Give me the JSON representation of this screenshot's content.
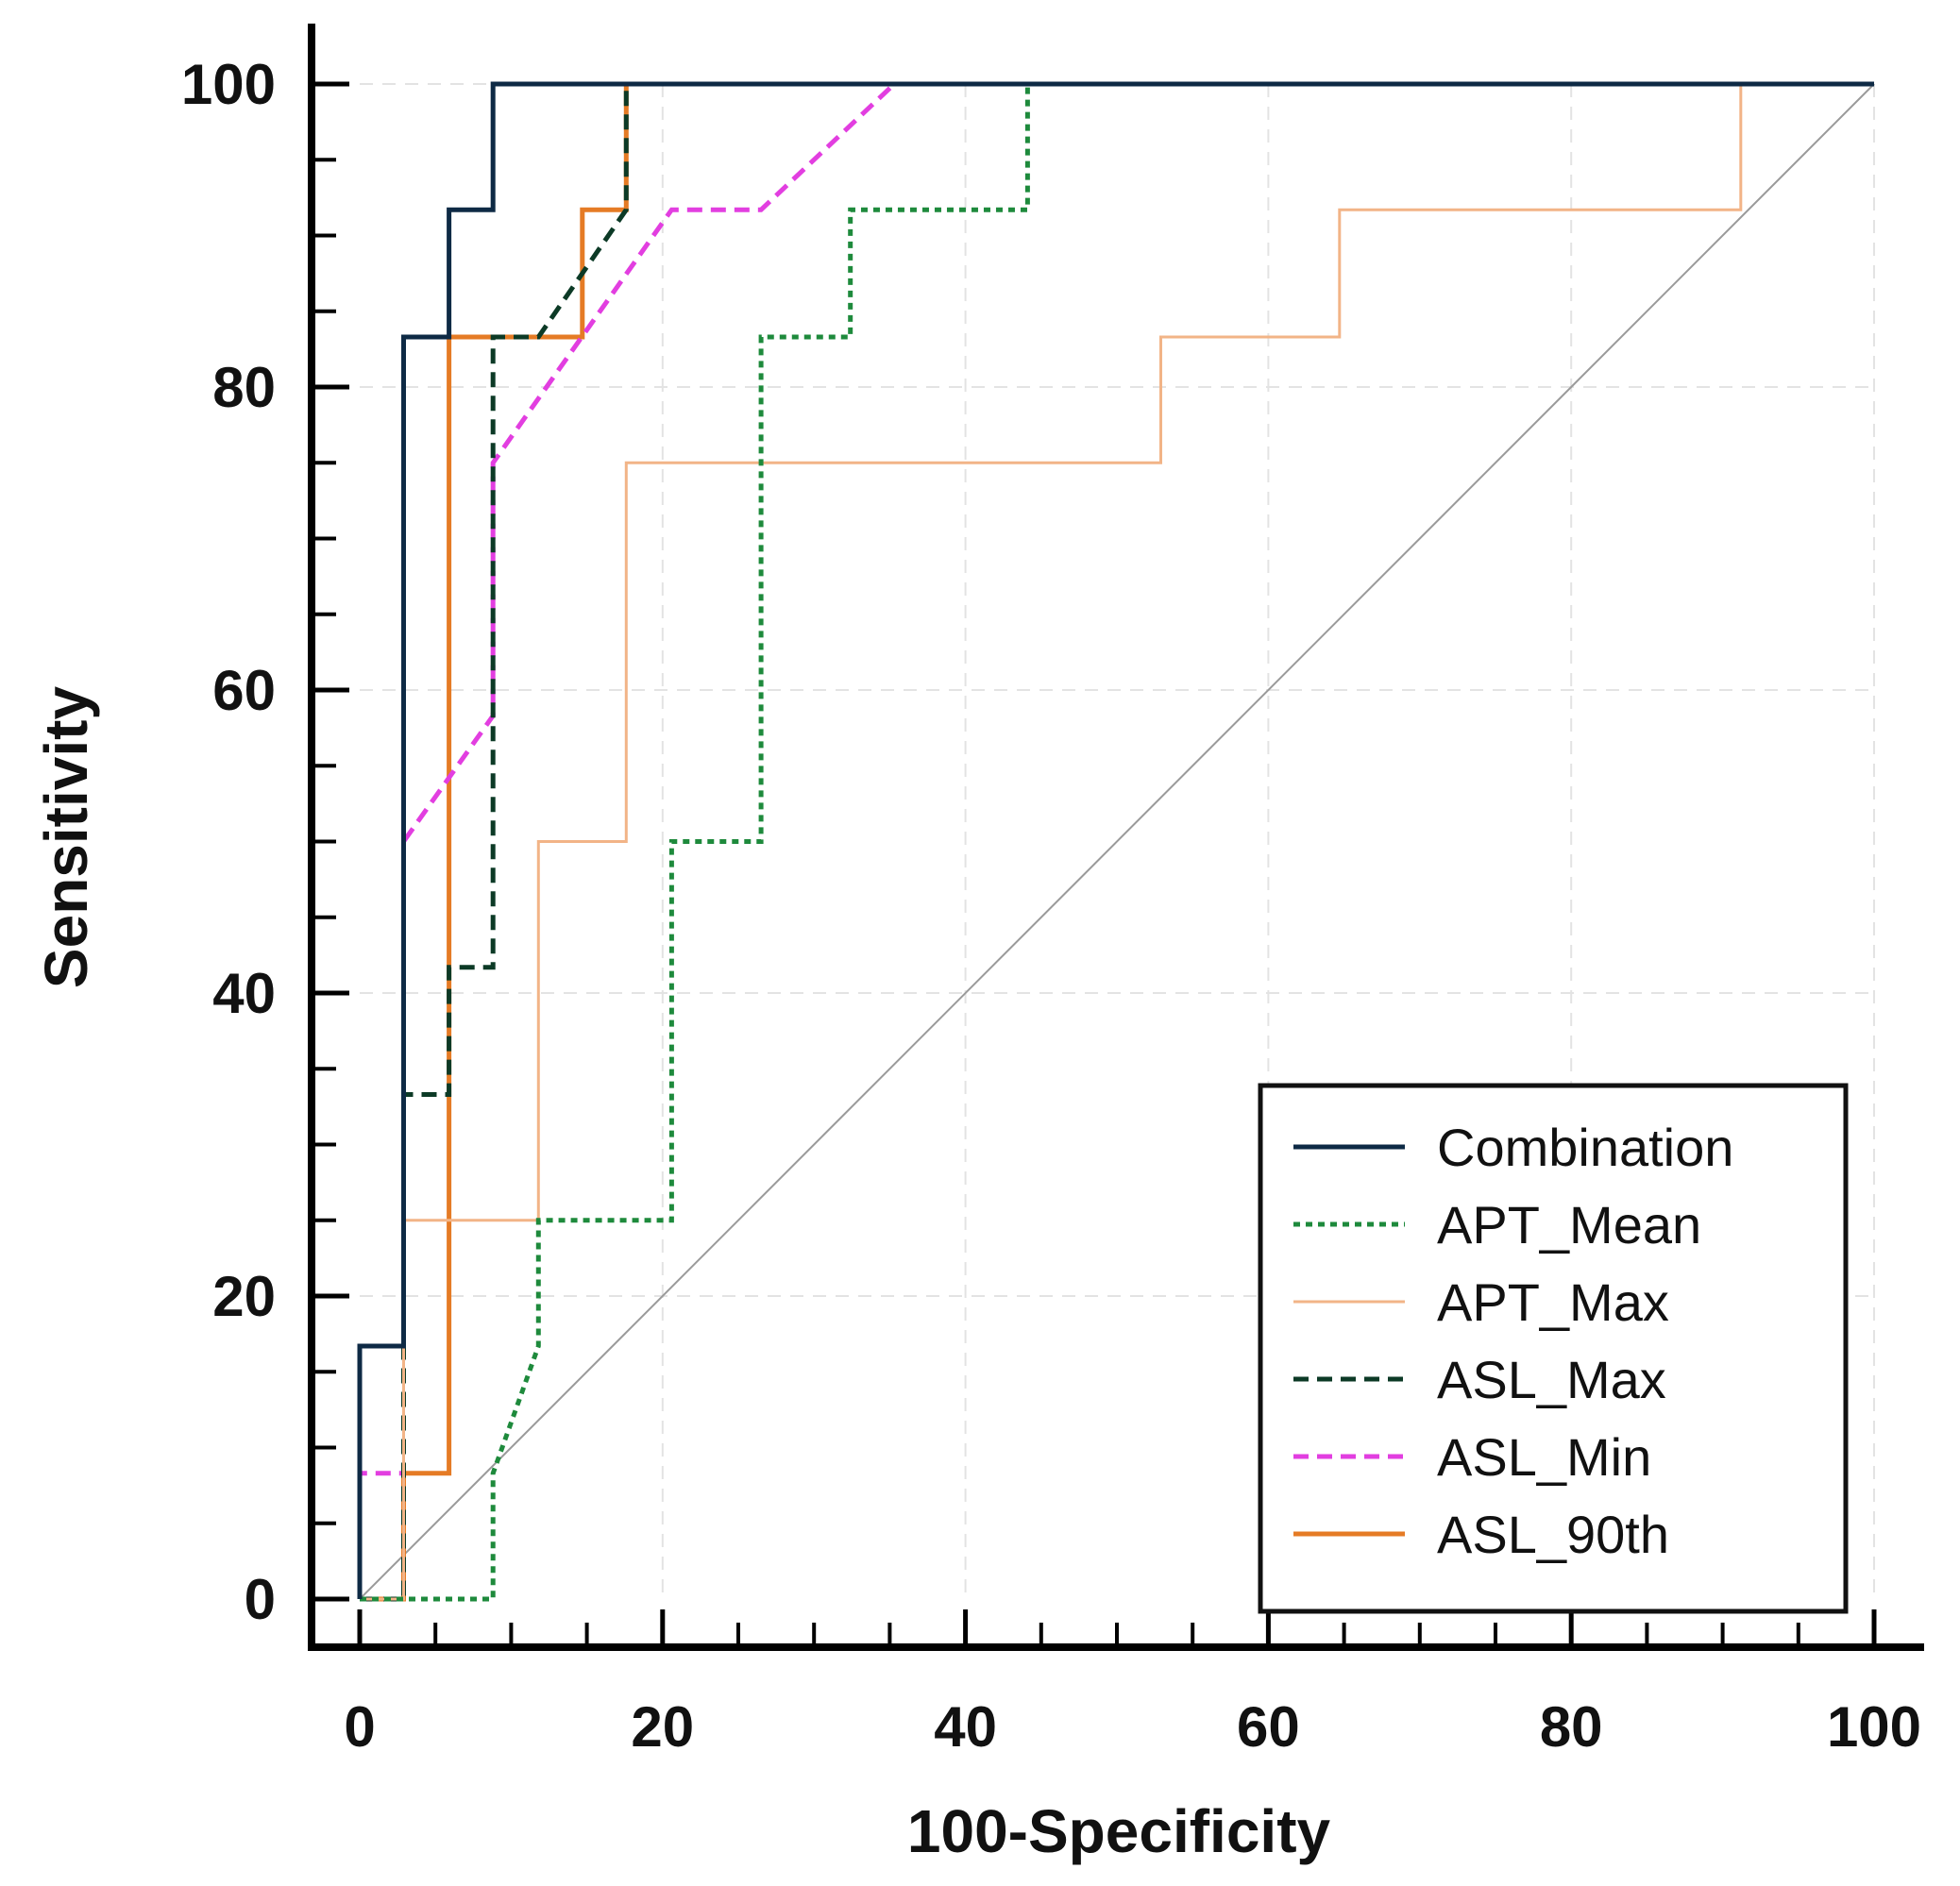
{
  "chart_data": {
    "type": "line",
    "title": "",
    "xlabel": "100-Specificity",
    "ylabel": "Sensitivity",
    "xlim": [
      0,
      100
    ],
    "ylim": [
      0,
      100
    ],
    "xticks": [
      0,
      20,
      40,
      60,
      80,
      100
    ],
    "yticks": [
      0,
      20,
      40,
      60,
      80,
      100
    ],
    "grid": true,
    "legend_position": "bottom-right",
    "reference_line": {
      "name": "chance",
      "x": [
        0,
        100
      ],
      "y": [
        0,
        100
      ],
      "color": "#9a9a9a"
    },
    "series": [
      {
        "name": "Combination",
        "color": "#0e2a45",
        "style": "solid",
        "x": [
          0,
          0,
          2.9,
          2.9,
          5.9,
          5.9,
          8.8,
          8.8,
          17.6,
          100
        ],
        "y": [
          0,
          16.7,
          16.7,
          83.3,
          83.3,
          91.7,
          91.7,
          100,
          100,
          100
        ]
      },
      {
        "name": "APT_Mean",
        "color": "#1e8a3c",
        "style": "dotted",
        "x": [
          0,
          2.9,
          8.8,
          8.8,
          11.8,
          11.8,
          20.6,
          20.6,
          26.5,
          26.5,
          32.4,
          32.4,
          44.1,
          44.1,
          100
        ],
        "y": [
          0,
          0,
          0,
          8.3,
          16.7,
          25,
          25,
          50,
          50,
          83.3,
          83.3,
          91.7,
          91.7,
          100,
          100
        ]
      },
      {
        "name": "APT_Max",
        "color": "#f2b487",
        "style": "solid",
        "x": [
          0,
          2.9,
          2.9,
          11.8,
          11.8,
          17.6,
          17.6,
          52.9,
          52.9,
          64.7,
          64.7,
          91.2,
          91.2,
          100
        ],
        "y": [
          0,
          0,
          25,
          25,
          50,
          50,
          75,
          75,
          83.3,
          83.3,
          91.7,
          91.7,
          100,
          100
        ]
      },
      {
        "name": "ASL_Max",
        "color": "#0c3a26",
        "style": "dashed",
        "x": [
          0,
          2.9,
          2.9,
          5.9,
          5.9,
          8.8,
          8.8,
          11.8,
          17.6,
          17.6,
          100
        ],
        "y": [
          0,
          0,
          33.3,
          33.3,
          41.7,
          41.7,
          83.3,
          83.3,
          91.7,
          100,
          100
        ]
      },
      {
        "name": "ASL_Min",
        "color": "#e23ee0",
        "style": "dashed",
        "x": [
          0,
          0,
          2.9,
          2.9,
          8.8,
          8.8,
          20.6,
          26.5,
          35.3,
          100
        ],
        "y": [
          0,
          8.3,
          8.3,
          50,
          58.3,
          75,
          91.7,
          91.7,
          100,
          100
        ]
      },
      {
        "name": "ASL_90th",
        "color": "#e57b25",
        "style": "solid",
        "x": [
          0,
          2.9,
          2.9,
          5.9,
          5.9,
          14.7,
          14.7,
          17.6,
          17.6,
          100
        ],
        "y": [
          0,
          0,
          8.3,
          8.3,
          83.3,
          83.3,
          91.7,
          91.7,
          100,
          100
        ]
      }
    ]
  }
}
